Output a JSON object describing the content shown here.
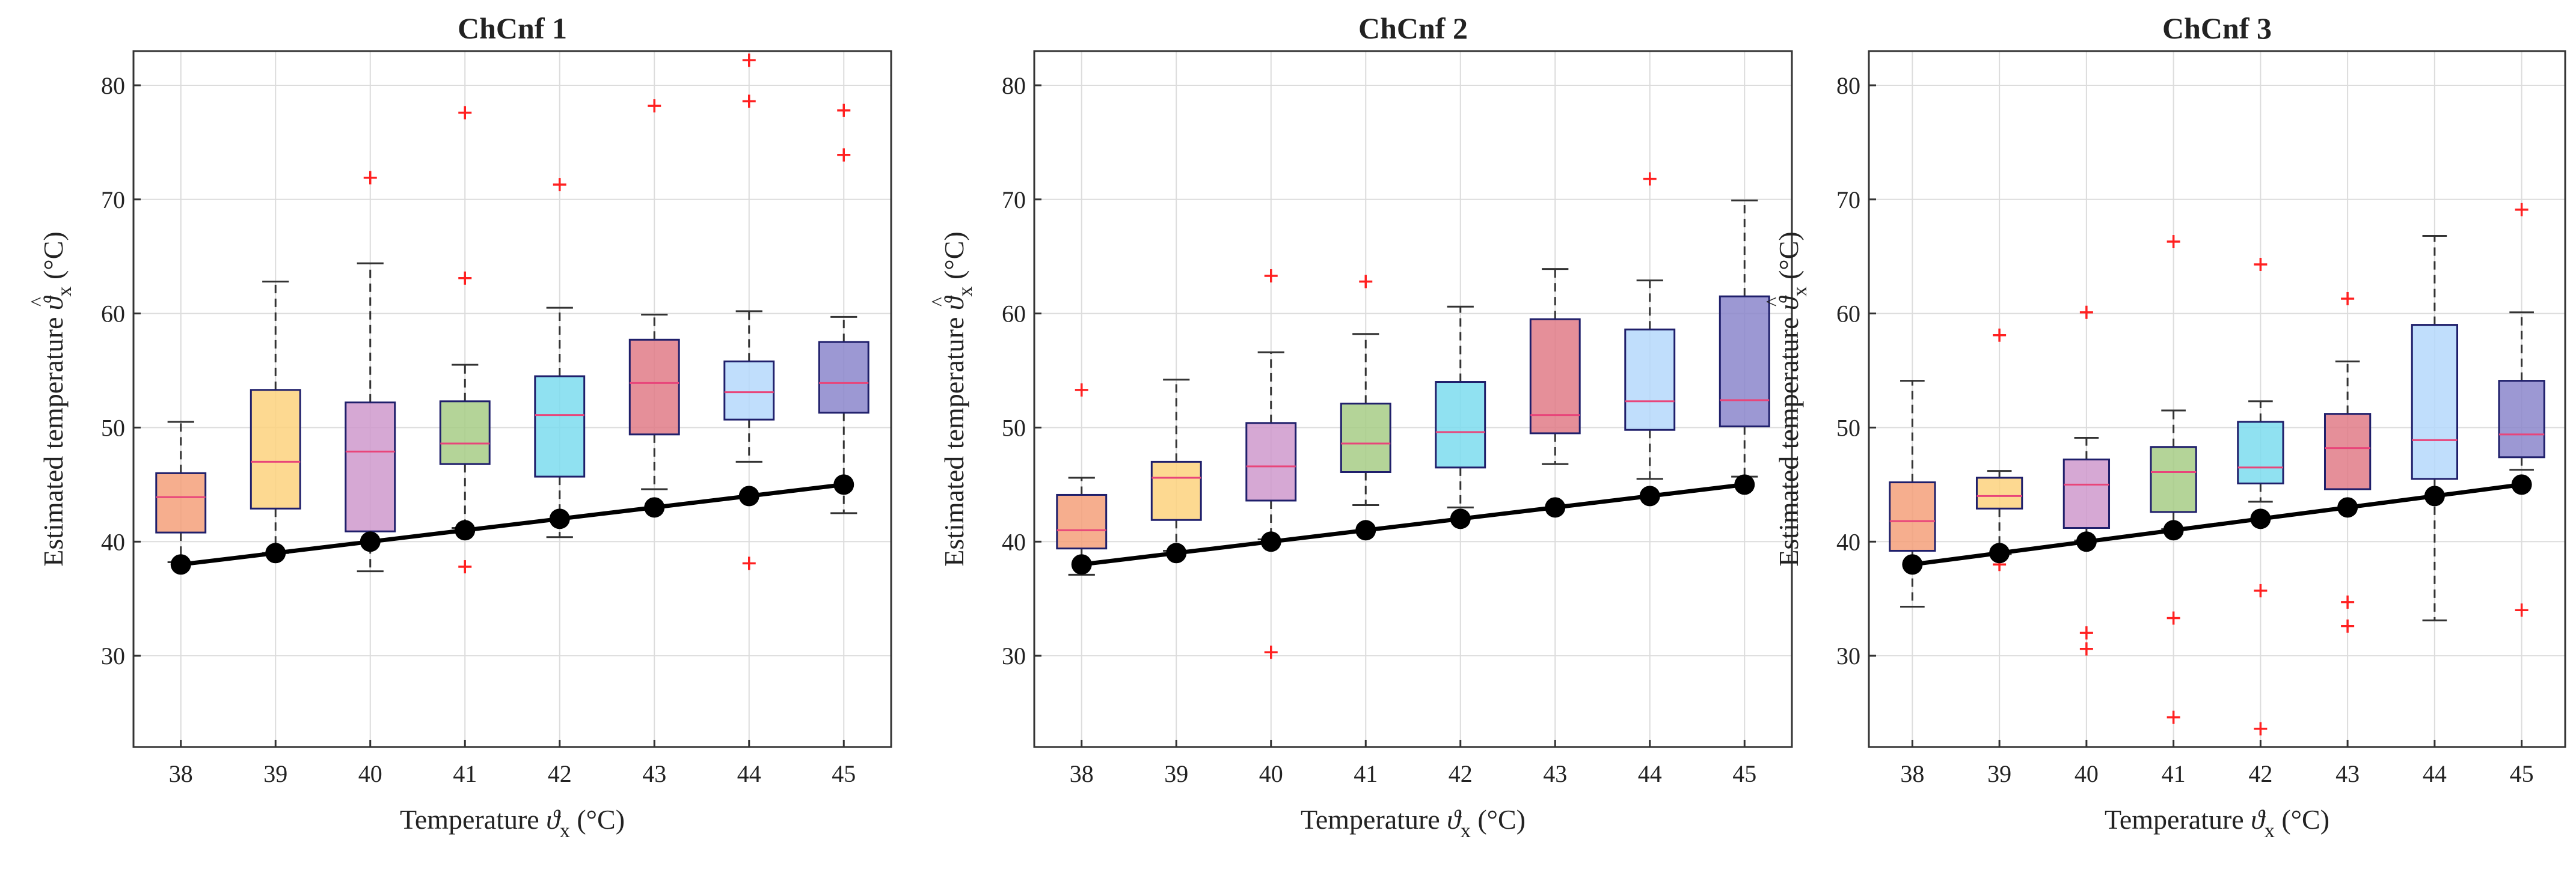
{
  "figure": {
    "ylabel_text": "Estimated temperature",
    "ylabel_symbol": "ϑ",
    "ylabel_hat": "^",
    "ylabel_sub": "x",
    "ylabel_unit": "(°C)",
    "xlabel_text": "Temperature",
    "xlabel_symbol": "ϑ",
    "xlabel_sub": "x",
    "xlabel_unit": "(°C)"
  },
  "chart_data": [
    {
      "type": "boxplot",
      "title": "ChCnf 1",
      "categories": [
        "38",
        "39",
        "40",
        "41",
        "42",
        "43",
        "44",
        "45"
      ],
      "ylim": [
        22,
        83
      ],
      "yticks": [
        30,
        40,
        50,
        60,
        70,
        80
      ],
      "yticklabels": [
        "30",
        "40",
        "50",
        "60",
        "70",
        "80"
      ],
      "grid": true,
      "reference_line": [
        38,
        39,
        40,
        41,
        42,
        43,
        44,
        45
      ],
      "boxes": [
        {
          "whisker_low": 38.2,
          "q1": 40.8,
          "median": 43.9,
          "q3": 46.0,
          "whisker_high": 50.5,
          "outliers": []
        },
        {
          "whisker_low": 39.0,
          "q1": 42.9,
          "median": 47.0,
          "q3": 53.3,
          "whisker_high": 62.8,
          "outliers": []
        },
        {
          "whisker_low": 37.4,
          "q1": 40.9,
          "median": 47.9,
          "q3": 52.2,
          "whisker_high": 64.4,
          "outliers": [
            71.9
          ]
        },
        {
          "whisker_low": 41.2,
          "q1": 46.8,
          "median": 48.6,
          "q3": 52.3,
          "whisker_high": 55.5,
          "outliers": [
            37.8,
            63.1,
            77.6
          ]
        },
        {
          "whisker_low": 40.4,
          "q1": 45.7,
          "median": 51.1,
          "q3": 54.5,
          "whisker_high": 60.5,
          "outliers": [
            71.3
          ]
        },
        {
          "whisker_low": 44.6,
          "q1": 49.4,
          "median": 53.9,
          "q3": 57.7,
          "whisker_high": 59.9,
          "outliers": [
            78.2
          ]
        },
        {
          "whisker_low": 47.0,
          "q1": 50.7,
          "median": 53.1,
          "q3": 55.8,
          "whisker_high": 60.2,
          "outliers": [
            38.1,
            78.6,
            82.2
          ]
        },
        {
          "whisker_low": 42.5,
          "q1": 51.3,
          "median": 53.9,
          "q3": 57.5,
          "whisker_high": 59.7,
          "outliers": [
            73.9,
            77.8
          ]
        }
      ]
    },
    {
      "type": "boxplot",
      "title": "ChCnf 2",
      "categories": [
        "38",
        "39",
        "40",
        "41",
        "42",
        "43",
        "44",
        "45"
      ],
      "ylim": [
        22,
        83
      ],
      "yticks": [
        30,
        40,
        50,
        60,
        70,
        80
      ],
      "yticklabels": [
        "30",
        "40",
        "50",
        "60",
        "70",
        "80"
      ],
      "grid": true,
      "reference_line": [
        38,
        39,
        40,
        41,
        42,
        43,
        44,
        45
      ],
      "boxes": [
        {
          "whisker_low": 37.1,
          "q1": 39.4,
          "median": 41.0,
          "q3": 44.1,
          "whisker_high": 45.6,
          "outliers": [
            53.3
          ]
        },
        {
          "whisker_low": 39.2,
          "q1": 41.9,
          "median": 45.6,
          "q3": 47.0,
          "whisker_high": 54.2,
          "outliers": []
        },
        {
          "whisker_low": 40.2,
          "q1": 43.6,
          "median": 46.6,
          "q3": 50.4,
          "whisker_high": 56.6,
          "outliers": [
            30.3,
            63.3
          ]
        },
        {
          "whisker_low": 43.2,
          "q1": 46.1,
          "median": 48.6,
          "q3": 52.1,
          "whisker_high": 58.2,
          "outliers": [
            62.8
          ]
        },
        {
          "whisker_low": 43.0,
          "q1": 46.5,
          "median": 49.6,
          "q3": 54.0,
          "whisker_high": 60.6,
          "outliers": []
        },
        {
          "whisker_low": 46.8,
          "q1": 49.5,
          "median": 51.1,
          "q3": 59.5,
          "whisker_high": 63.9,
          "outliers": []
        },
        {
          "whisker_low": 45.5,
          "q1": 49.8,
          "median": 52.3,
          "q3": 58.6,
          "whisker_high": 62.9,
          "outliers": [
            71.8
          ]
        },
        {
          "whisker_low": 45.7,
          "q1": 50.1,
          "median": 52.4,
          "q3": 61.5,
          "whisker_high": 69.9,
          "outliers": []
        }
      ]
    },
    {
      "type": "boxplot",
      "title": "ChCnf 3",
      "categories": [
        "38",
        "39",
        "40",
        "41",
        "42",
        "43",
        "44",
        "45"
      ],
      "ylim": [
        22,
        83
      ],
      "yticks": [
        30,
        40,
        50,
        60,
        70,
        80
      ],
      "yticklabels": [
        "30",
        "40",
        "50",
        "60",
        "70",
        "80"
      ],
      "grid": true,
      "reference_line": [
        38,
        39,
        40,
        41,
        42,
        43,
        44,
        45
      ],
      "boxes": [
        {
          "whisker_low": 34.3,
          "q1": 39.2,
          "median": 41.8,
          "q3": 45.2,
          "whisker_high": 54.1,
          "outliers": []
        },
        {
          "whisker_low": 38.9,
          "q1": 42.9,
          "median": 44.0,
          "q3": 45.6,
          "whisker_high": 46.2,
          "outliers": [
            38.0,
            58.1
          ]
        },
        {
          "whisker_low": 40.1,
          "q1": 41.2,
          "median": 45.0,
          "q3": 47.2,
          "whisker_high": 49.1,
          "outliers": [
            30.6,
            32.0,
            60.1
          ]
        },
        {
          "whisker_low": 41.1,
          "q1": 42.6,
          "median": 46.1,
          "q3": 48.3,
          "whisker_high": 51.5,
          "outliers": [
            24.6,
            33.3,
            66.3
          ]
        },
        {
          "whisker_low": 43.5,
          "q1": 45.1,
          "median": 46.5,
          "q3": 50.5,
          "whisker_high": 52.3,
          "outliers": [
            23.6,
            35.7,
            64.3
          ]
        },
        {
          "whisker_low": 44.6,
          "q1": 44.6,
          "median": 48.2,
          "q3": 51.2,
          "whisker_high": 55.8,
          "outliers": [
            32.6,
            34.7,
            61.3
          ]
        },
        {
          "whisker_low": 33.1,
          "q1": 45.5,
          "median": 48.9,
          "q3": 59.0,
          "whisker_high": 66.8,
          "outliers": []
        },
        {
          "whisker_low": 46.3,
          "q1": 47.4,
          "median": 49.4,
          "q3": 54.1,
          "whisker_high": 60.1,
          "outliers": [
            34.0,
            69.1
          ]
        }
      ]
    }
  ],
  "colors": {
    "box_fills": [
      "#f4a07a",
      "#fdd27e",
      "#cf99cd",
      "#a7cd86",
      "#7cdcef",
      "#e07b87",
      "#b5d8fb",
      "#8b86cb"
    ],
    "box_edge": "#1f1f6b",
    "median": "#e8457a",
    "whisker": "#333333",
    "outlier": "#ff2020",
    "reference_line": "#000000",
    "grid": "#dcdcdc",
    "axes": "#333333"
  }
}
